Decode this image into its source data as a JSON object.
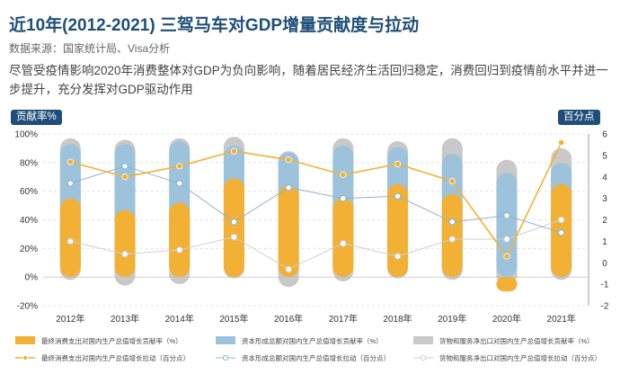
{
  "header": {
    "title": "近10年(2012-2021) 三驾马车对GDP增量贡献度与拉动",
    "source": "数据来源：国家统计局、Visa分析",
    "description": "尽管受疫情影响2020年消费整体对GDP为负向影响，随着居民经济生活回归稳定，消费回归到疫情前水平并进一步提升，充分发挥对GDP驱动作用"
  },
  "axes": {
    "left_unit": "贡献率%",
    "right_unit": "百分点"
  },
  "colors": {
    "consumption": "#f2b134",
    "investment": "#9dc3dc",
    "netexport": "#c9c9c9",
    "consumption_line": "#f2b134",
    "investment_line": "#8fb6cf",
    "netexport_line": "#cfcfcf",
    "axis_badge": "#1f4e79"
  },
  "chart_data": {
    "type": "bar",
    "categories": [
      "2012年",
      "2013年",
      "2014年",
      "2015年",
      "2016年",
      "2017年",
      "2018年",
      "2019年",
      "2020年",
      "2021年"
    ],
    "left_axis": {
      "ylim": [
        -20,
        100
      ],
      "ticks": [
        -20,
        0,
        20,
        40,
        60,
        80,
        100
      ],
      "tick_labels": [
        "-20%",
        "0%",
        "20%",
        "40%",
        "60%",
        "80%",
        "100%"
      ]
    },
    "right_axis": {
      "ylim": [
        -2,
        6
      ],
      "ticks": [
        -2,
        -1,
        0,
        1,
        2,
        3,
        4,
        5,
        6
      ],
      "tick_labels": [
        "-2",
        "-1",
        "0",
        "1",
        "2",
        "3",
        "4",
        "5",
        "6"
      ]
    },
    "bar_series": [
      {
        "name": "最终消费支出对国内生产总值增长贡献率（%）",
        "values": [
          55,
          47,
          52,
          69,
          64,
          55,
          65,
          58,
          -10,
          65
        ]
      },
      {
        "name": "资本形成总额对国内生产总值增长贡献率（%）",
        "values": [
          93,
          93,
          95,
          92,
          87,
          92,
          91,
          86,
          73,
          80
        ]
      },
      {
        "name": "货物和服务净出口对国内生产总值增长贡献率（%）",
        "values": [
          97,
          96,
          97,
          98,
          88,
          97,
          95,
          97,
          82,
          90
        ]
      }
    ],
    "bar_series_bottom": [
      {
        "name": "货物和服务净出口对国内生产总值增长贡献率（%）",
        "values": [
          -2,
          -6,
          -5,
          -1,
          -7,
          -3,
          -1,
          -2,
          -6,
          -2
        ]
      }
    ],
    "line_series": [
      {
        "name": "最终消费支出对国内生产总值增长拉动（百分点）",
        "values": [
          4.7,
          4.0,
          4.5,
          5.2,
          4.8,
          4.1,
          4.6,
          3.8,
          0.3,
          5.6
        ]
      },
      {
        "name": "资本形成总额对国内生产总值增长拉动（百分点）",
        "values": [
          3.7,
          4.5,
          3.7,
          1.9,
          3.5,
          3.0,
          3.1,
          1.9,
          2.2,
          1.4
        ]
      },
      {
        "name": "货物和服务净出口对国内生产总值增长拉动（百分点）",
        "values": [
          1.0,
          0.4,
          0.6,
          1.2,
          -0.3,
          0.9,
          0.3,
          1.1,
          1.1,
          2.0
        ]
      }
    ],
    "legend": [
      "最终消费支出对国内生产总值增长贡献率（%）",
      "资本形成总额对国内生产总值增长贡献率（%）",
      "货物和服务净出口对国内生产总值增长贡献率（%）",
      "最终消费支出对国内生产总值增长拉动（百分点）",
      "资本形成总额对国内生产总值增长拉动（百分点）",
      "货物和服务净出口对国内生产总值增长拉动（百分点）"
    ],
    "legend_position": "bottom",
    "grid": "horizontal-dashed"
  }
}
